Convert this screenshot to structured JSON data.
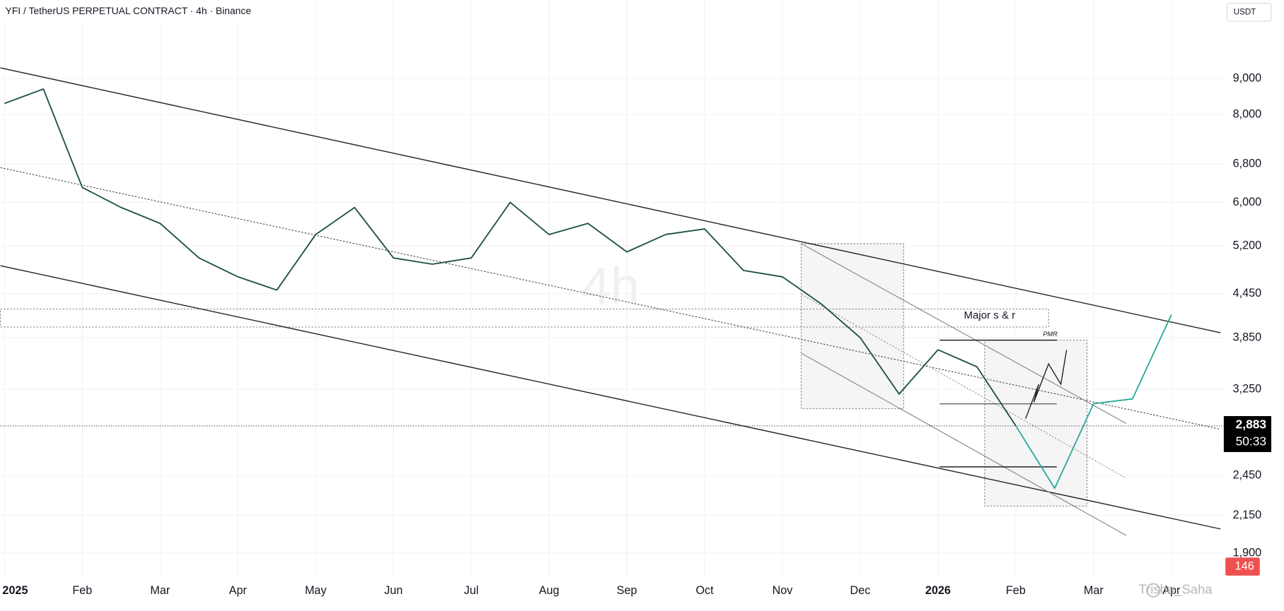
{
  "chart_data": {
    "type": "line",
    "title": "YFI / TetherUS PERPETUAL CONTRACT · 4h · Binance",
    "currency": "USDT",
    "watermark": "4h",
    "author": "Trisha_Saha",
    "annotations": [
      "Major s & r",
      "PMR"
    ],
    "categories": [
      "2025",
      null,
      "Feb",
      null,
      "Mar",
      null,
      "Apr",
      null,
      "May",
      null,
      "Jun",
      null,
      "Jul",
      null,
      "Aug",
      null,
      "Sep",
      null,
      "Oct",
      null,
      "Nov",
      null,
      "Dec",
      null,
      "2026",
      null,
      "Feb",
      null,
      "Mar",
      null,
      "Apr"
    ],
    "series": [
      {
        "color": "#1f4f4a",
        "values": [
          8300,
          8700,
          6300,
          5900,
          5600,
          5000,
          4700,
          4500,
          5400,
          5900,
          5000,
          4900,
          5000,
          6000,
          5400,
          5600,
          5100,
          5400,
          5500,
          4800,
          4700,
          4300,
          3850,
          3200,
          3700,
          3500,
          2883,
          null,
          null,
          null,
          null
        ]
      },
      {
        "color": "#2ea99a",
        "values": [
          null,
          null,
          null,
          null,
          null,
          null,
          null,
          null,
          null,
          null,
          null,
          null,
          null,
          null,
          null,
          null,
          null,
          null,
          null,
          null,
          null,
          null,
          null,
          null,
          null,
          null,
          2883,
          2350,
          3100,
          3150,
          4150
        ]
      }
    ],
    "log_scale": true,
    "grid": true,
    "ylim": [
      1760,
      11650
    ],
    "yticks": [
      {
        "value": 1900,
        "label": "1,900"
      },
      {
        "value": 2150,
        "label": "2,150"
      },
      {
        "value": 2450,
        "label": "2,450"
      },
      {
        "value": 3250,
        "label": "3,250"
      },
      {
        "value": 3850,
        "label": "3,850"
      },
      {
        "value": 4450,
        "label": "4,450"
      },
      {
        "value": 5200,
        "label": "5,200"
      },
      {
        "value": 6000,
        "label": "6,000"
      },
      {
        "value": 6800,
        "label": "6,800"
      },
      {
        "value": 8000,
        "label": "8,000"
      },
      {
        "value": 9000,
        "label": "9,000"
      }
    ],
    "last_price": {
      "value": 2883,
      "label": "2,883"
    },
    "countdown": "50:33",
    "last_volume": 146
  }
}
